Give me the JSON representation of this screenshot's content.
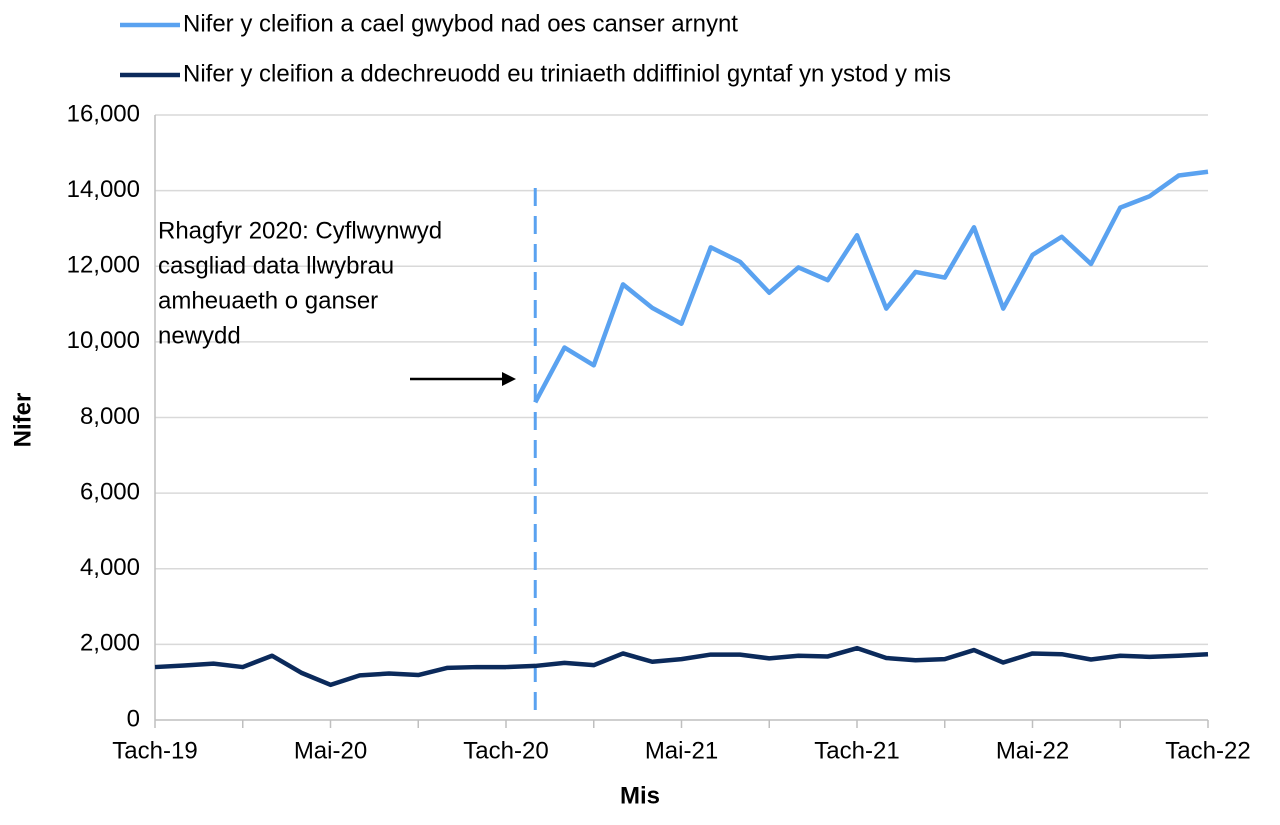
{
  "chart_data": {
    "type": "line",
    "x_label": "Mis",
    "y_label": "Nifer",
    "categories": [
      "Tach-19",
      null,
      null,
      null,
      null,
      null,
      "Mai-20",
      null,
      null,
      null,
      null,
      null,
      "Tach-20",
      null,
      null,
      null,
      null,
      null,
      "Mai-21",
      null,
      null,
      null,
      null,
      null,
      "Tach-21",
      null,
      null,
      null,
      null,
      null,
      "Mai-22",
      null,
      null,
      null,
      null,
      null,
      "Tach-22"
    ],
    "series": [
      {
        "name": "Nifer y cleifion a cael gwybod nad oes canser arnynt",
        "color": "#5aa2f0",
        "values": [
          null,
          null,
          null,
          null,
          null,
          null,
          null,
          null,
          null,
          null,
          null,
          null,
          null,
          8400,
          9850,
          9380,
          11520,
          10900,
          10480,
          12500,
          12120,
          11300,
          11970,
          11630,
          12820,
          10880,
          11850,
          11700,
          13030,
          10880,
          12300,
          12780,
          12060,
          13550,
          13850,
          14400,
          14500
        ]
      },
      {
        "name": "Nifer y cleifion a ddechreuodd eu triniaeth ddiffiniol gyntaf yn ystod y mis",
        "color": "#0b2a5b",
        "values": [
          1400,
          1440,
          1490,
          1400,
          1700,
          1250,
          930,
          1180,
          1230,
          1190,
          1380,
          1400,
          1400,
          1430,
          1510,
          1450,
          1760,
          1540,
          1610,
          1730,
          1730,
          1630,
          1700,
          1680,
          1900,
          1640,
          1580,
          1610,
          1850,
          1520,
          1760,
          1740,
          1600,
          1700,
          1670,
          1700,
          1740
        ]
      }
    ],
    "annotation": [
      "Rhagfyr 2020: Cyflwynwyd",
      "casgliad data llwybrau",
      "amheuaeth o ganser",
      "newydd"
    ],
    "ylim": [
      0,
      16000
    ],
    "yticks": [
      0,
      {
        "value": 2000,
        "label": "2,000"
      },
      {
        "value": 4000,
        "label": "4,000"
      },
      {
        "value": 6000,
        "label": "6,000"
      },
      {
        "value": 8000,
        "label": "8,000"
      },
      {
        "value": 10000,
        "label": "10,000"
      },
      {
        "value": 12000,
        "label": "12,000"
      },
      {
        "value": 14000,
        "label": "14,000"
      },
      {
        "value": 16000,
        "label": "16,000"
      }
    ],
    "grid": true,
    "legend": "top"
  }
}
